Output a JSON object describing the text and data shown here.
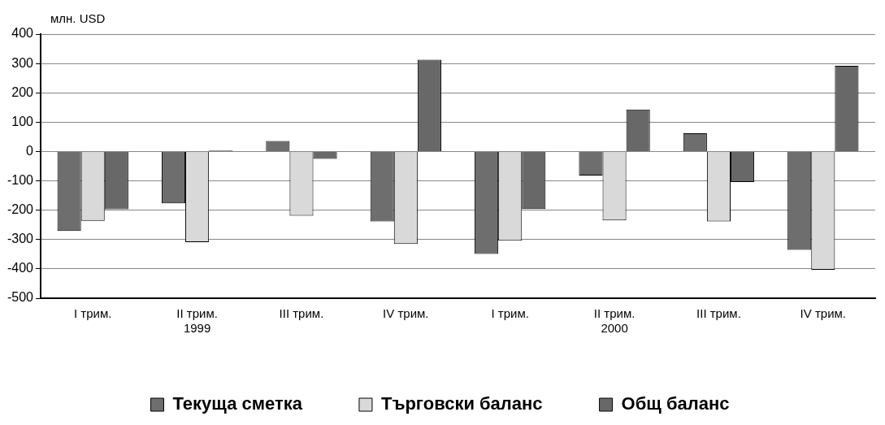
{
  "chart_data": {
    "type": "bar",
    "ylabel": "млн. USD",
    "categories": [
      "I трим.",
      "II трим.\n1999",
      "III трим.",
      "IV трим.",
      "I трим.",
      "II трим.\n2000",
      "III трим.",
      "IV трим."
    ],
    "series": [
      {
        "name": "Текуща сметка",
        "color": "#6e6e6e",
        "values": [
          -271,
          -177,
          36,
          -238,
          -349,
          -82,
          62,
          -335
        ]
      },
      {
        "name": "Търговски баланс",
        "color": "#d9d9d9",
        "values": [
          -236,
          -309,
          -219,
          -315,
          -304,
          -235,
          -238,
          -403
        ]
      },
      {
        "name": "Общ баланс",
        "color": "#686868",
        "values": [
          -197,
          3,
          -25,
          313,
          -196,
          143,
          -104,
          292
        ]
      }
    ],
    "ylim": [
      -500,
      400
    ],
    "yticks": [
      -500,
      -400,
      -300,
      -200,
      -100,
      0,
      100,
      200,
      300,
      400
    ],
    "grid": "y",
    "legend": "bottom"
  }
}
